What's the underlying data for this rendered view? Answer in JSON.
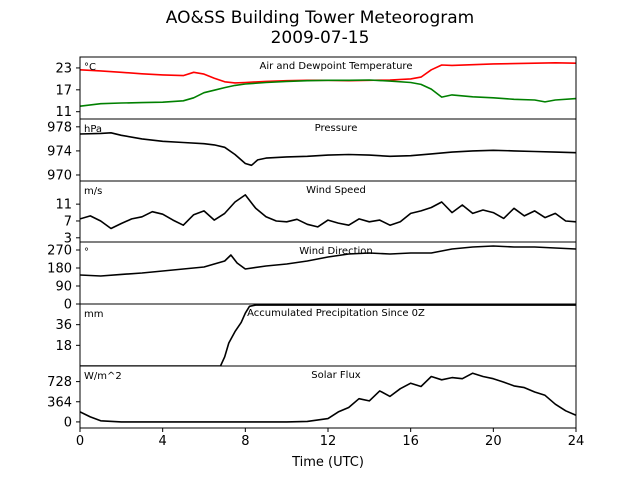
{
  "figure": {
    "title": "AO&SS Building Tower Meteorogram",
    "date": "2009-07-15",
    "xlabel": "Time (UTC)"
  },
  "chart_data": [
    {
      "type": "line",
      "title": "Air and Dewpoint Temperature",
      "unit": "°C",
      "xlim": [
        0,
        24
      ],
      "ylim": [
        9,
        26
      ],
      "yticks": [
        11,
        17,
        23
      ],
      "series": [
        {
          "color": "#ff0000",
          "x": [
            0,
            1,
            2,
            3,
            4,
            5,
            5.5,
            6,
            6.5,
            7,
            7.5,
            8,
            9,
            10,
            11,
            12,
            13,
            14,
            15,
            16,
            16.5,
            17,
            17.5,
            18,
            19,
            20,
            21,
            22,
            23,
            24
          ],
          "y": [
            22.5,
            22.2,
            21.8,
            21.4,
            21.1,
            20.9,
            21.8,
            21.3,
            20.2,
            19.2,
            18.9,
            19.0,
            19.3,
            19.5,
            19.6,
            19.6,
            19.5,
            19.6,
            19.7,
            20.0,
            20.5,
            22.5,
            23.8,
            23.7,
            23.9,
            24.1,
            24.2,
            24.3,
            24.4,
            24.3
          ]
        },
        {
          "color": "#008000",
          "x": [
            0,
            1,
            2,
            3,
            4,
            5,
            5.5,
            6,
            6.5,
            7,
            7.5,
            8,
            9,
            10,
            11,
            12,
            13,
            14,
            15,
            16,
            16.5,
            17,
            17.5,
            18,
            19,
            20,
            21,
            22,
            22.5,
            23,
            24
          ],
          "y": [
            12.5,
            13.2,
            13.4,
            13.5,
            13.6,
            14.0,
            14.8,
            16.2,
            16.9,
            17.6,
            18.2,
            18.6,
            19.0,
            19.3,
            19.5,
            19.6,
            19.6,
            19.7,
            19.4,
            19.0,
            18.5,
            17.2,
            15.0,
            15.6,
            15.1,
            14.8,
            14.4,
            14.2,
            13.7,
            14.2,
            14.6
          ]
        }
      ]
    },
    {
      "type": "line",
      "title": "Pressure",
      "unit": "hPa",
      "xlim": [
        0,
        24
      ],
      "ylim": [
        969,
        979.3
      ],
      "yticks": [
        970,
        974,
        978
      ],
      "series": [
        {
          "color": "#000000",
          "x": [
            0,
            1,
            1.5,
            2,
            3,
            4,
            5,
            6,
            6.5,
            7,
            7.5,
            8,
            8.3,
            8.6,
            9,
            10,
            11,
            12,
            13,
            14,
            15,
            16,
            17,
            18,
            19,
            20,
            21,
            22,
            23,
            24
          ],
          "y": [
            976.8,
            976.9,
            977.0,
            976.6,
            976.0,
            975.6,
            975.4,
            975.2,
            975.0,
            974.6,
            973.4,
            971.9,
            971.6,
            972.5,
            972.8,
            973.0,
            973.1,
            973.3,
            973.4,
            973.3,
            973.1,
            973.2,
            973.5,
            973.8,
            974.0,
            974.1,
            974.0,
            973.9,
            973.8,
            973.7
          ]
        }
      ]
    },
    {
      "type": "line",
      "title": "Wind Speed",
      "unit": "m/s",
      "xlim": [
        0,
        24
      ],
      "ylim": [
        2,
        16.5
      ],
      "yticks": [
        3,
        7,
        11
      ],
      "series": [
        {
          "color": "#000000",
          "x": [
            0,
            0.5,
            1,
            1.5,
            2,
            2.5,
            3,
            3.5,
            4,
            4.5,
            5,
            5.5,
            6,
            6.5,
            7,
            7.5,
            8,
            8.5,
            9,
            9.5,
            10,
            10.5,
            11,
            11.5,
            12,
            12.5,
            13,
            13.5,
            14,
            14.5,
            15,
            15.5,
            16,
            16.5,
            17,
            17.5,
            18,
            18.5,
            19,
            19.5,
            20,
            20.5,
            21,
            21.5,
            22,
            22.5,
            23,
            23.5,
            24
          ],
          "y": [
            7.5,
            8.2,
            7.0,
            5.2,
            6.4,
            7.5,
            8.0,
            9.2,
            8.6,
            7.2,
            6.0,
            8.5,
            9.4,
            7.2,
            8.8,
            11.5,
            13.2,
            10.0,
            8.0,
            7.0,
            6.8,
            7.4,
            6.2,
            5.6,
            7.2,
            6.5,
            6.0,
            7.5,
            6.8,
            7.2,
            6.0,
            6.8,
            8.8,
            9.4,
            10.2,
            11.5,
            9.0,
            10.8,
            8.8,
            9.6,
            9.0,
            7.6,
            10.0,
            8.2,
            9.4,
            7.8,
            8.8,
            7.0,
            6.8
          ]
        }
      ]
    },
    {
      "type": "line",
      "title": "Wind Direction",
      "unit": "°",
      "xlim": [
        0,
        24
      ],
      "ylim": [
        0,
        310
      ],
      "yticks": [
        0,
        90,
        180,
        270
      ],
      "series": [
        {
          "color": "#000000",
          "x": [
            0,
            1,
            2,
            3,
            4,
            5,
            6,
            6.5,
            7,
            7.3,
            7.6,
            8,
            9,
            10,
            11,
            12,
            13,
            14,
            15,
            16,
            17,
            18,
            19,
            20,
            21,
            22,
            23,
            24
          ],
          "y": [
            145,
            140,
            148,
            155,
            165,
            175,
            185,
            200,
            215,
            245,
            205,
            175,
            190,
            200,
            215,
            235,
            250,
            255,
            250,
            255,
            255,
            275,
            285,
            290,
            285,
            285,
            280,
            275
          ]
        }
      ]
    },
    {
      "type": "line",
      "title": "Accumulated Precipitation Since 0Z",
      "unit": "mm",
      "xlim": [
        0,
        24
      ],
      "ylim": [
        0,
        54
      ],
      "yticks": [
        18,
        36
      ],
      "series": [
        {
          "color": "#000000",
          "x": [
            0,
            6.8,
            7.0,
            7.2,
            7.5,
            7.8,
            8.0,
            8.2,
            8.5,
            9,
            12,
            16,
            20,
            24
          ],
          "y": [
            0,
            0,
            8,
            20,
            30,
            38,
            46,
            52,
            53,
            53,
            53,
            53,
            53,
            53
          ]
        }
      ]
    },
    {
      "type": "line",
      "title": "Solar Flux",
      "unit": "W/m^2",
      "xlim": [
        0,
        24
      ],
      "ylim": [
        -110,
        1010
      ],
      "yticks": [
        0,
        364,
        728
      ],
      "series": [
        {
          "color": "#000000",
          "x": [
            0,
            0.5,
            1,
            2,
            4,
            6,
            8,
            10,
            11,
            12,
            12.5,
            13,
            13.5,
            14,
            14.5,
            15,
            15.5,
            16,
            16.5,
            17,
            17.5,
            18,
            18.5,
            19,
            19.5,
            20,
            20.5,
            21,
            21.5,
            22,
            22.5,
            23,
            23.5,
            24
          ],
          "y": [
            180,
            90,
            20,
            0,
            0,
            0,
            0,
            0,
            10,
            60,
            180,
            260,
            420,
            380,
            560,
            460,
            600,
            700,
            640,
            820,
            760,
            800,
            780,
            880,
            820,
            780,
            720,
            650,
            620,
            540,
            480,
            320,
            200,
            120
          ]
        }
      ]
    }
  ]
}
